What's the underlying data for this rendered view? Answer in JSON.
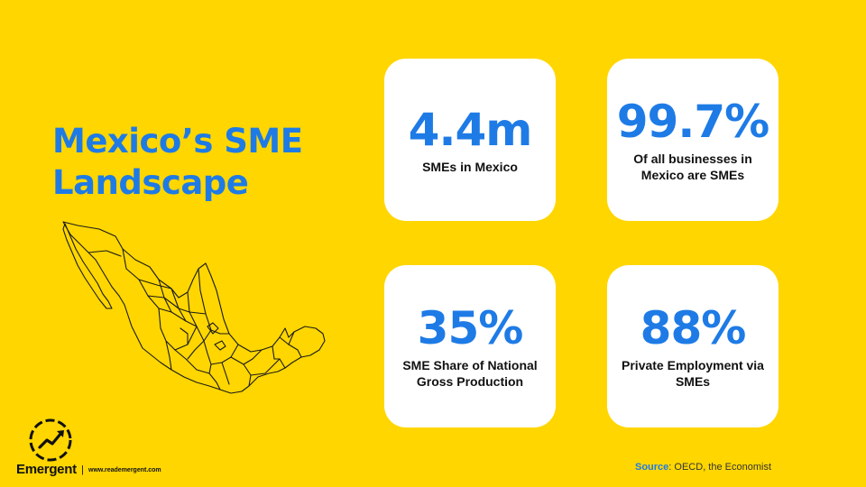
{
  "title": {
    "line1": "Mexico’s SME",
    "line2": "Landscape"
  },
  "stats": [
    {
      "value": "4.4m",
      "label": "SMEs in Mexico"
    },
    {
      "value": "99.7%",
      "label": "Of all businesses in Mexico are SMEs"
    },
    {
      "value": "35%",
      "label": "SME Share of National Gross Production"
    },
    {
      "value": "88%",
      "label": "Private Employment via SMEs"
    }
  ],
  "source": {
    "key": "Source",
    "text": ": OECD, the Economist"
  },
  "brand": {
    "name": "Emergent",
    "separator": "|",
    "url": "www.reademergent.com"
  },
  "icons": {
    "map": "mexico-map-icon",
    "logo": "trend-up-icon"
  },
  "colors": {
    "background": "#FFD600",
    "accent": "#1E7BE6",
    "card": "#FFFFFF",
    "text": "#111111"
  }
}
